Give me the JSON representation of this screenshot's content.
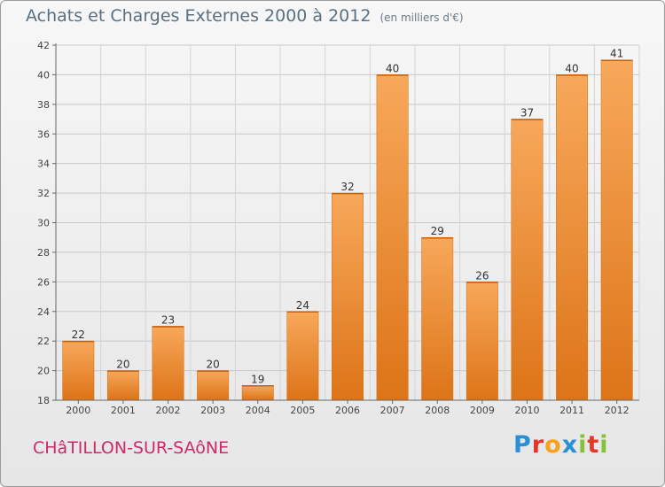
{
  "header": {
    "title": "Achats et Charges Externes 2000 à 2012",
    "unit": "(en milliers d'€)"
  },
  "footer": {
    "commune": "CHâTILLON-SUR-SAôNE",
    "logo_letters": [
      "P",
      "r",
      "o",
      "x",
      "i",
      "t",
      "i"
    ],
    "logo_colors": [
      "#2a8fd4",
      "#e2382a",
      "#f6a21c",
      "#2a8fd4",
      "#86c13a",
      "#e2382a",
      "#86c13a"
    ]
  },
  "chart_data": {
    "type": "bar",
    "title": "Achats et Charges Externes 2000 à 2012",
    "subtitle": "(en milliers d'€)",
    "categories": [
      "2000",
      "2001",
      "2002",
      "2003",
      "2004",
      "2005",
      "2006",
      "2007",
      "2008",
      "2009",
      "2010",
      "2011",
      "2012"
    ],
    "values": [
      22,
      20,
      23,
      20,
      19,
      24,
      32,
      40,
      29,
      26,
      37,
      40,
      41
    ],
    "ylim": [
      18,
      42
    ],
    "yticks": [
      18,
      20,
      22,
      24,
      26,
      28,
      30,
      32,
      34,
      36,
      38,
      40,
      42
    ],
    "grid": true,
    "bar_color_top": "#f7a85a",
    "bar_color_bottom": "#dd7418"
  }
}
